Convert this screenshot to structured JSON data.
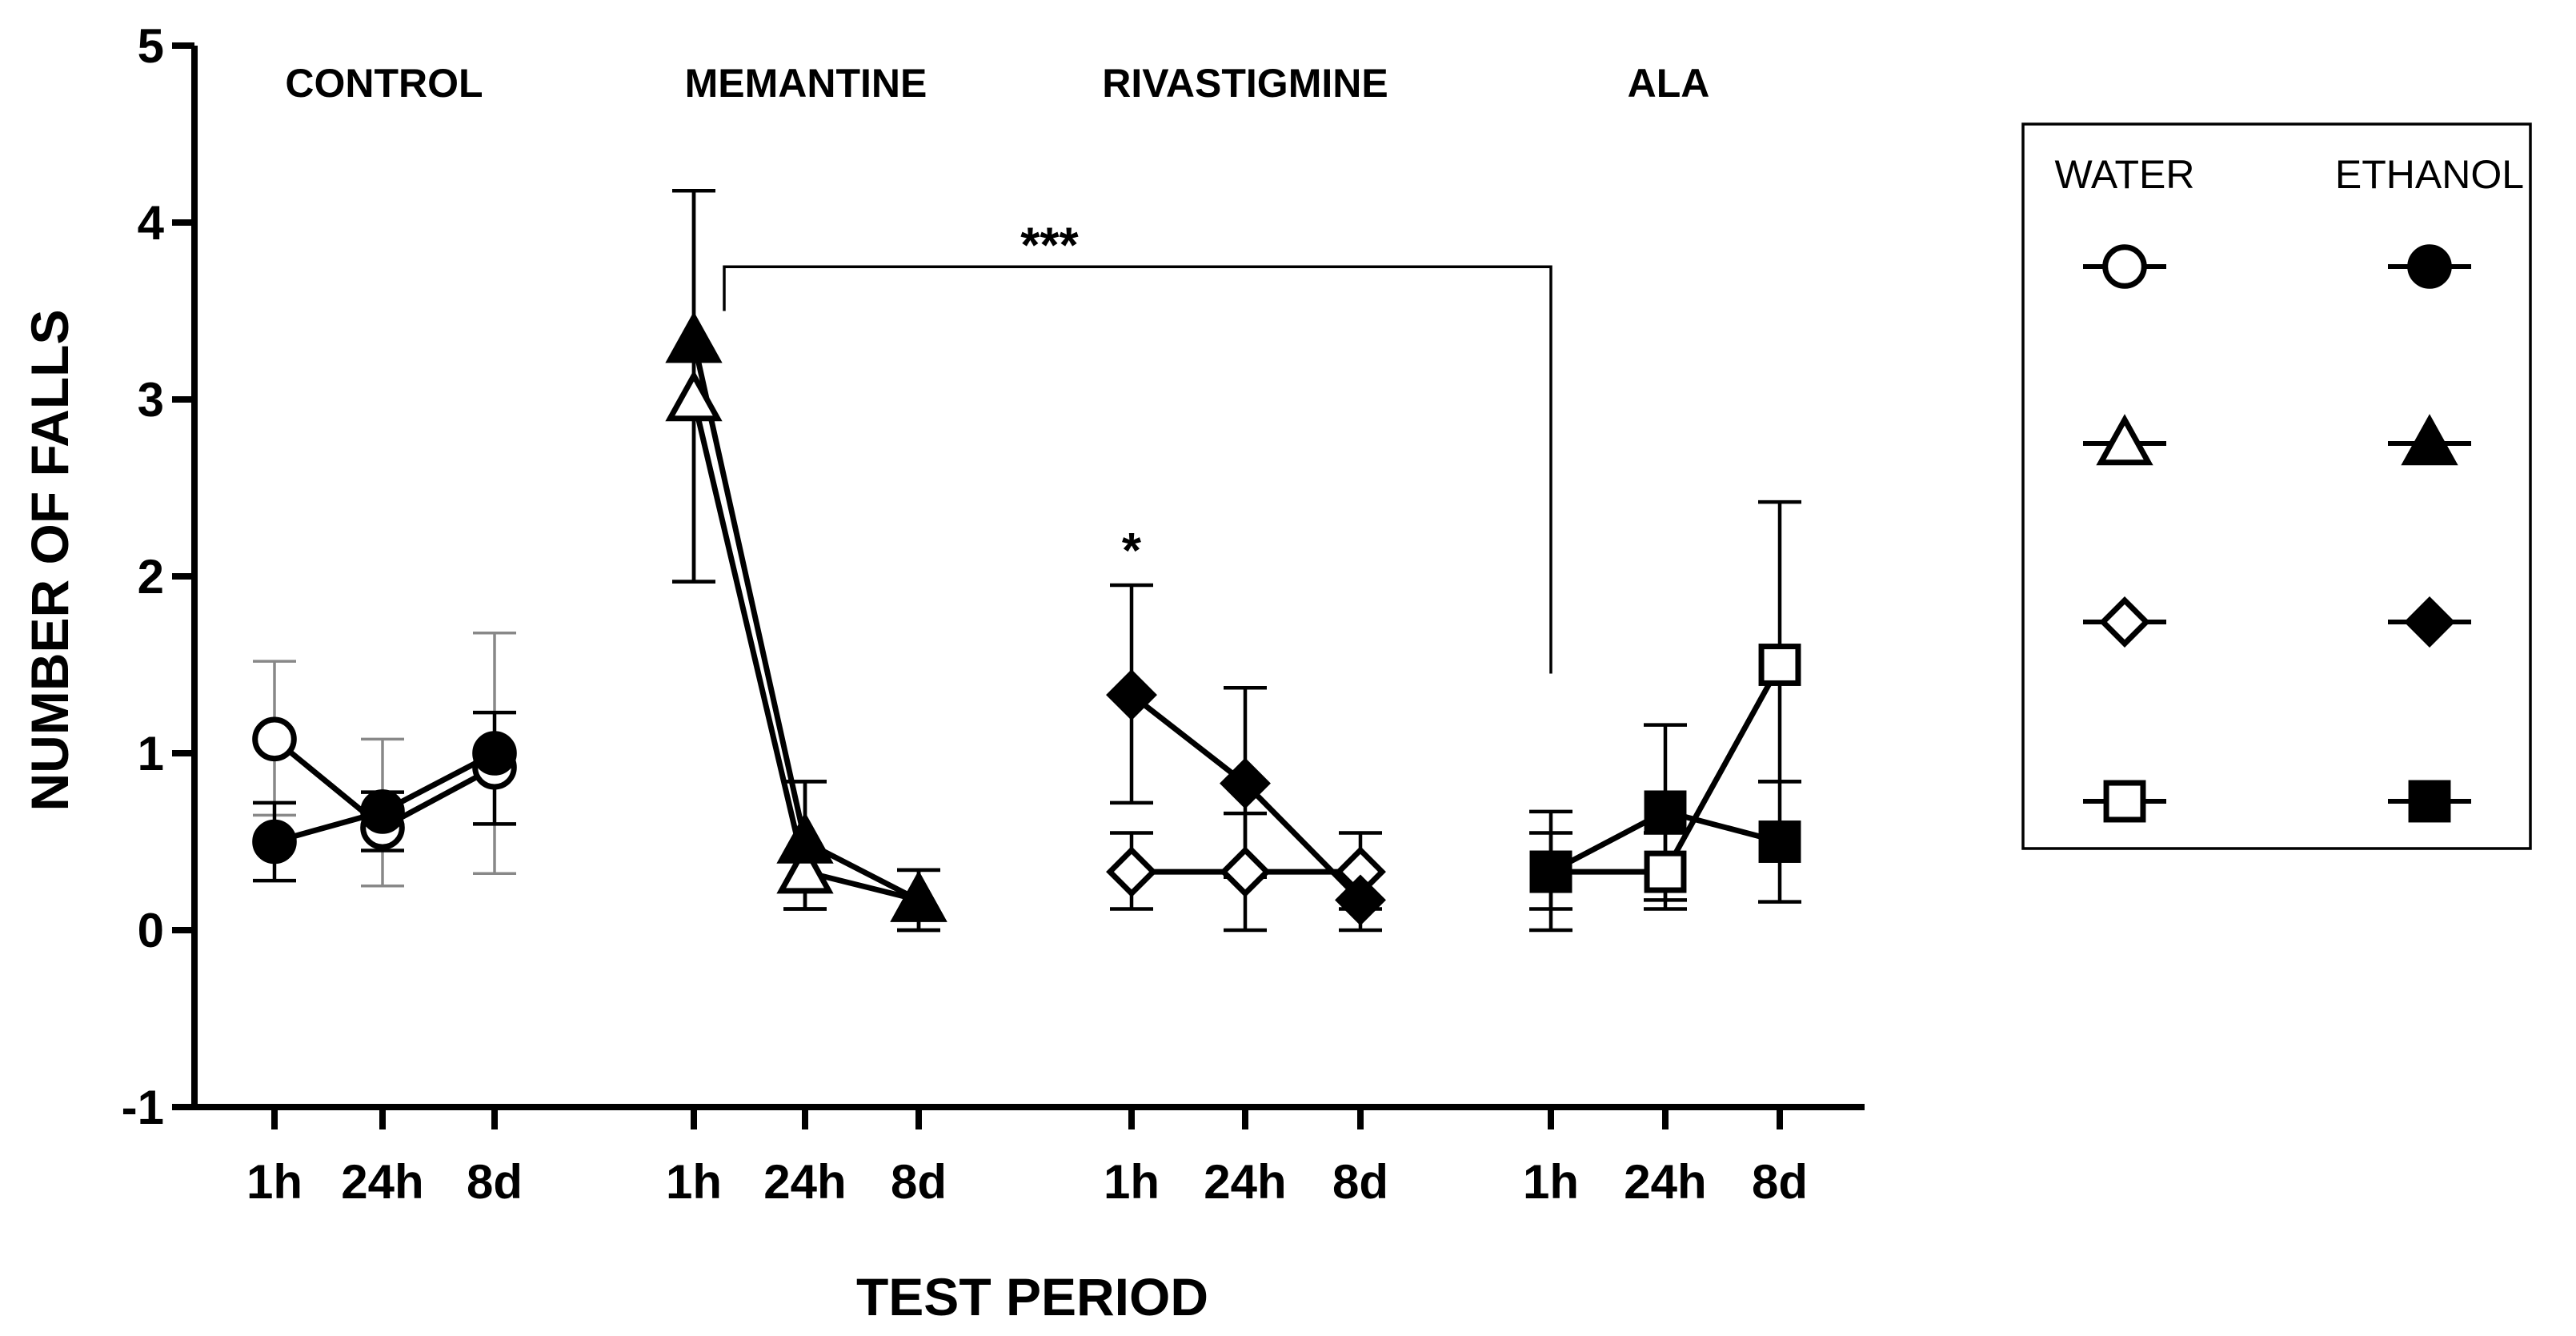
{
  "chart_data": {
    "type": "line",
    "title": "",
    "xlabel": "TEST PERIOD",
    "ylabel": "NUMBER OF FALLS",
    "ylim": [
      -1,
      5
    ],
    "yticks": [
      "-1",
      "0",
      "1",
      "2",
      "3",
      "4",
      "5"
    ],
    "grid": false,
    "legend_position": "right",
    "legend": {
      "headers": [
        "WATER",
        "ETHANOL"
      ],
      "rows": [
        {
          "water": "circle",
          "ethanol": "circle"
        },
        {
          "water": "triangle",
          "ethanol": "triangle"
        },
        {
          "water": "diamond",
          "ethanol": "diamond"
        },
        {
          "water": "square",
          "ethanol": "square"
        }
      ]
    },
    "groups": [
      {
        "label": "CONTROL",
        "marker": "circle",
        "timepoints": [
          "1h",
          "24h",
          "8d"
        ],
        "water": {
          "name": "WATER",
          "values": [
            1.08,
            0.58,
            0.92
          ],
          "err_hi": [
            1.52,
            1.08,
            1.68
          ],
          "err_lo": [
            0.65,
            0.25,
            0.32
          ],
          "err_color": "#888888"
        },
        "ethanol": {
          "name": "ETHANOL",
          "values": [
            0.5,
            0.67,
            1.0
          ],
          "err_hi": [
            0.72,
            0.78,
            1.23
          ],
          "err_lo": [
            0.28,
            0.45,
            0.6
          ],
          "err_color": "#000000"
        }
      },
      {
        "label": "MEMANTINE",
        "marker": "triangle",
        "timepoints": [
          "1h",
          "24h",
          "8d"
        ],
        "water": {
          "name": "WATER",
          "values": [
            3.0,
            0.33,
            0.17
          ],
          "err_hi": [
            4.18,
            0.84,
            0.34
          ],
          "err_lo": [
            1.97,
            0.12,
            0.0
          ],
          "err_color": "#000000"
        },
        "ethanol": {
          "name": "ETHANOL",
          "values": [
            3.33,
            0.5,
            0.17
          ],
          "err_hi": [
            4.18,
            0.84,
            0.34
          ],
          "err_lo": [
            1.97,
            0.12,
            0.0
          ],
          "err_color": "#000000"
        }
      },
      {
        "label": "RIVASTIGMINE",
        "marker": "diamond",
        "timepoints": [
          "1h",
          "24h",
          "8d"
        ],
        "water": {
          "name": "WATER",
          "values": [
            0.33,
            0.33,
            0.33
          ],
          "err_hi": [
            0.55,
            0.66,
            0.55
          ],
          "err_lo": [
            0.12,
            0.0,
            0.12
          ],
          "err_color": "#000000"
        },
        "ethanol": {
          "name": "ETHANOL",
          "values": [
            1.33,
            0.83,
            0.17
          ],
          "err_hi": [
            1.95,
            1.37,
            0.34
          ],
          "err_lo": [
            0.72,
            0.3,
            0.0
          ],
          "err_color": "#000000"
        }
      },
      {
        "label": "ALA",
        "marker": "square",
        "timepoints": [
          "1h",
          "24h",
          "8d"
        ],
        "water": {
          "name": "WATER",
          "values": [
            0.33,
            0.33,
            1.5
          ],
          "err_hi": [
            0.55,
            0.55,
            2.42
          ],
          "err_lo": [
            0.12,
            0.12,
            0.84
          ],
          "err_color": "#000000"
        },
        "ethanol": {
          "name": "ETHANOL",
          "values": [
            0.33,
            0.67,
            0.5
          ],
          "err_hi": [
            0.67,
            1.16,
            0.84
          ],
          "err_lo": [
            0.0,
            0.17,
            0.16
          ],
          "err_color": "#000000"
        }
      }
    ],
    "annotations": [
      {
        "text": "***",
        "type": "bracket",
        "from_group": "MEMANTINE",
        "from_time": "1h",
        "to_group": "ALA",
        "to_time": "1h",
        "y_top": 3.75,
        "y_left_end": 3.5,
        "y_right_end": 1.45
      },
      {
        "text": "*",
        "type": "star",
        "group": "RIVASTIGMINE",
        "time": "1h",
        "y": 2.15
      }
    ]
  }
}
